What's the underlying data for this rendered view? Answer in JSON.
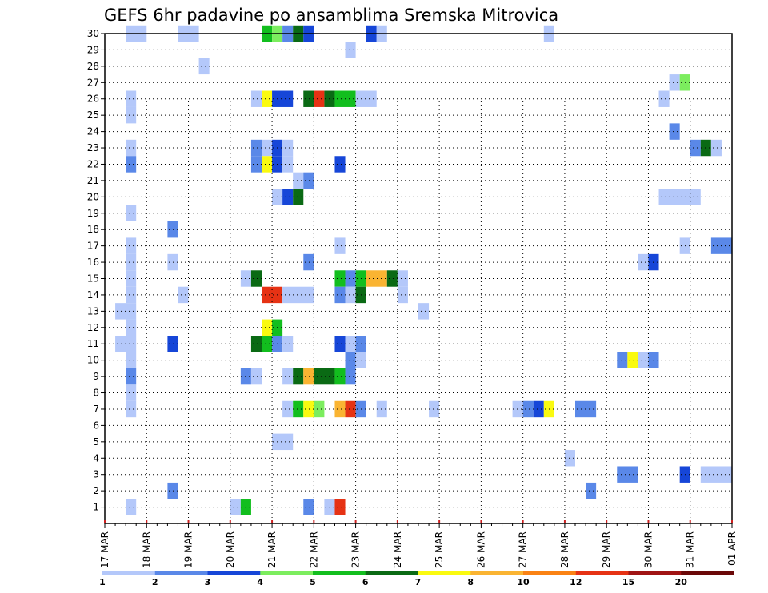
{
  "chart_data": {
    "type": "heatmap",
    "title": "GEFS 6hr padavine po ansamblima Sremska Mitrovica",
    "x_tick_labels": [
      "17 MAR",
      "18 MAR",
      "19 MAR",
      "20 MAR",
      "21 MAR",
      "22 MAR",
      "23 MAR",
      "24 MAR",
      "25 MAR",
      "26 MAR",
      "27 MAR",
      "28 MAR",
      "29 MAR",
      "30 MAR",
      "31 MAR",
      "01 APR"
    ],
    "y_tick_labels": [
      "1",
      "2",
      "3",
      "4",
      "5",
      "6",
      "7",
      "8",
      "9",
      "10",
      "11",
      "12",
      "13",
      "14",
      "15",
      "16",
      "17",
      "18",
      "19",
      "20",
      "21",
      "22",
      "23",
      "24",
      "25",
      "26",
      "27",
      "28",
      "29",
      "30"
    ],
    "x_range_days": [
      0,
      15
    ],
    "y_range": [
      0,
      30
    ],
    "time_step_hours": 6,
    "grid": "dotted",
    "colorbar": {
      "labels": [
        "1",
        "2",
        "3",
        "4",
        "5",
        "6",
        "7",
        "8",
        "10",
        "12",
        "15",
        "20"
      ],
      "colors": [
        "#b4c8fa",
        "#5a88e8",
        "#1646d8",
        "#7ced5e",
        "#12be1e",
        "#0a6a14",
        "#fafa10",
        "#fab432",
        "#fa8214",
        "#e63214",
        "#a01414",
        "#6a0808"
      ]
    },
    "cells": [
      [
        30,
        0.5,
        1,
        0
      ],
      [
        30,
        1.75,
        2.25,
        0
      ],
      [
        30,
        3.75,
        4,
        4
      ],
      [
        30,
        4,
        4.25,
        3
      ],
      [
        30,
        4.25,
        4.5,
        1
      ],
      [
        30,
        4.5,
        4.75,
        5
      ],
      [
        30,
        4.75,
        5,
        2
      ],
      [
        30,
        6.25,
        6.5,
        2
      ],
      [
        30,
        6.5,
        6.75,
        0
      ],
      [
        30,
        10.5,
        10.75,
        0
      ],
      [
        29,
        5.75,
        6,
        0
      ],
      [
        28,
        2.25,
        2.5,
        0
      ],
      [
        27,
        13.5,
        13.75,
        0
      ],
      [
        27,
        13.75,
        14,
        3
      ],
      [
        26,
        0.5,
        0.75,
        0
      ],
      [
        26,
        3.5,
        3.75,
        0
      ],
      [
        26,
        3.75,
        4,
        6
      ],
      [
        26,
        4,
        4.5,
        2
      ],
      [
        26,
        4.75,
        5,
        5
      ],
      [
        26,
        5,
        5.25,
        9
      ],
      [
        26,
        5.25,
        5.5,
        5
      ],
      [
        26,
        5.5,
        6,
        4
      ],
      [
        26,
        6,
        6.5,
        0
      ],
      [
        26,
        13.25,
        13.5,
        0
      ],
      [
        25,
        0.5,
        0.75,
        0
      ],
      [
        24,
        13.5,
        13.75,
        1
      ],
      [
        23,
        0.5,
        0.75,
        0
      ],
      [
        23,
        3.5,
        3.75,
        1
      ],
      [
        23,
        3.75,
        4,
        0
      ],
      [
        23,
        4,
        4.25,
        2
      ],
      [
        23,
        4.25,
        4.5,
        0
      ],
      [
        23,
        14,
        14.25,
        1
      ],
      [
        23,
        14.25,
        14.5,
        5
      ],
      [
        23,
        14.5,
        14.75,
        0
      ],
      [
        22,
        0.5,
        0.75,
        1
      ],
      [
        22,
        3.5,
        3.75,
        1
      ],
      [
        22,
        3.75,
        4,
        6
      ],
      [
        22,
        4,
        4.25,
        2
      ],
      [
        22,
        4.25,
        4.5,
        0
      ],
      [
        22,
        5.5,
        5.75,
        2
      ],
      [
        21,
        4.5,
        4.75,
        0
      ],
      [
        21,
        4.75,
        5,
        1
      ],
      [
        20,
        4,
        4.25,
        0
      ],
      [
        20,
        4.25,
        4.5,
        2
      ],
      [
        20,
        4.5,
        4.75,
        5
      ],
      [
        20,
        13.25,
        14.25,
        0
      ],
      [
        19,
        0.5,
        0.75,
        0
      ],
      [
        18,
        1.5,
        1.75,
        1
      ],
      [
        17,
        0.5,
        0.75,
        0
      ],
      [
        17,
        5.5,
        5.75,
        0
      ],
      [
        17,
        13.75,
        14,
        0
      ],
      [
        17,
        14.5,
        15,
        1
      ],
      [
        16,
        0.5,
        0.75,
        0
      ],
      [
        16,
        1.5,
        1.75,
        0
      ],
      [
        16,
        4.75,
        5,
        1
      ],
      [
        16,
        12.75,
        13,
        0
      ],
      [
        16,
        13,
        13.25,
        2
      ],
      [
        15,
        0.5,
        0.75,
        0
      ],
      [
        15,
        3.25,
        3.5,
        0
      ],
      [
        15,
        3.5,
        3.75,
        5
      ],
      [
        15,
        5.5,
        5.75,
        4
      ],
      [
        15,
        5.75,
        6,
        1
      ],
      [
        15,
        6,
        6.25,
        4
      ],
      [
        15,
        6.25,
        6.75,
        7
      ],
      [
        15,
        6.75,
        7,
        5
      ],
      [
        15,
        7,
        7.25,
        0
      ],
      [
        14,
        0.5,
        0.75,
        0
      ],
      [
        14,
        1.75,
        2,
        0
      ],
      [
        14,
        3.75,
        4.25,
        9
      ],
      [
        14,
        4.25,
        5,
        0
      ],
      [
        14,
        5.5,
        5.75,
        1
      ],
      [
        14,
        5.75,
        6,
        0
      ],
      [
        14,
        6,
        6.25,
        5
      ],
      [
        14,
        7,
        7.25,
        0
      ],
      [
        13,
        0.25,
        0.75,
        0
      ],
      [
        13,
        7.5,
        7.75,
        0
      ],
      [
        12,
        0.5,
        0.75,
        0
      ],
      [
        12,
        3.75,
        4,
        6
      ],
      [
        12,
        4,
        4.25,
        4
      ],
      [
        11,
        0.25,
        0.75,
        0
      ],
      [
        11,
        1.5,
        1.75,
        2
      ],
      [
        11,
        3.5,
        3.75,
        5
      ],
      [
        11,
        3.75,
        4,
        4
      ],
      [
        11,
        4,
        4.25,
        1
      ],
      [
        11,
        4.25,
        4.5,
        0
      ],
      [
        11,
        5.5,
        5.75,
        2
      ],
      [
        11,
        5.75,
        6,
        0
      ],
      [
        11,
        6,
        6.25,
        1
      ],
      [
        10,
        0.5,
        0.75,
        0
      ],
      [
        10,
        5.75,
        6,
        1
      ],
      [
        10,
        6,
        6.25,
        0
      ],
      [
        10,
        12.25,
        12.5,
        1
      ],
      [
        10,
        12.5,
        12.75,
        6
      ],
      [
        10,
        12.75,
        13,
        0
      ],
      [
        10,
        13,
        13.25,
        1
      ],
      [
        9,
        0.5,
        0.75,
        1
      ],
      [
        9,
        3.25,
        3.5,
        1
      ],
      [
        9,
        3.5,
        3.75,
        0
      ],
      [
        9,
        4.25,
        4.5,
        0
      ],
      [
        9,
        4.5,
        4.75,
        5
      ],
      [
        9,
        4.75,
        5,
        7
      ],
      [
        9,
        5,
        5.5,
        5
      ],
      [
        9,
        5.5,
        5.75,
        4
      ],
      [
        9,
        5.75,
        6,
        1
      ],
      [
        8,
        0.5,
        0.75,
        0
      ],
      [
        7,
        0.5,
        0.75,
        0
      ],
      [
        7,
        4.25,
        4.5,
        0
      ],
      [
        7,
        4.5,
        4.75,
        4
      ],
      [
        7,
        4.75,
        5,
        6
      ],
      [
        7,
        5,
        5.25,
        3
      ],
      [
        7,
        5.5,
        5.75,
        7
      ],
      [
        7,
        5.75,
        6,
        9
      ],
      [
        7,
        6,
        6.25,
        1
      ],
      [
        7,
        6.5,
        6.75,
        0
      ],
      [
        7,
        7.75,
        8,
        0
      ],
      [
        7,
        9.75,
        10,
        0
      ],
      [
        7,
        10,
        10.25,
        1
      ],
      [
        7,
        10.25,
        10.5,
        2
      ],
      [
        7,
        10.5,
        10.75,
        6
      ],
      [
        7,
        11.25,
        11.75,
        1
      ],
      [
        5,
        4,
        4.5,
        0
      ],
      [
        4,
        11,
        11.25,
        0
      ],
      [
        3,
        12.25,
        12.75,
        1
      ],
      [
        3,
        13.75,
        14,
        2
      ],
      [
        3,
        14.25,
        15,
        0
      ],
      [
        2,
        1.5,
        1.75,
        1
      ],
      [
        2,
        11.5,
        11.75,
        1
      ],
      [
        1,
        0.5,
        0.75,
        0
      ],
      [
        1,
        3,
        3.25,
        0
      ],
      [
        1,
        3.25,
        3.5,
        4
      ],
      [
        1,
        4.75,
        5,
        1
      ],
      [
        1,
        5.25,
        5.5,
        0
      ],
      [
        1,
        5.5,
        5.75,
        9
      ]
    ]
  }
}
